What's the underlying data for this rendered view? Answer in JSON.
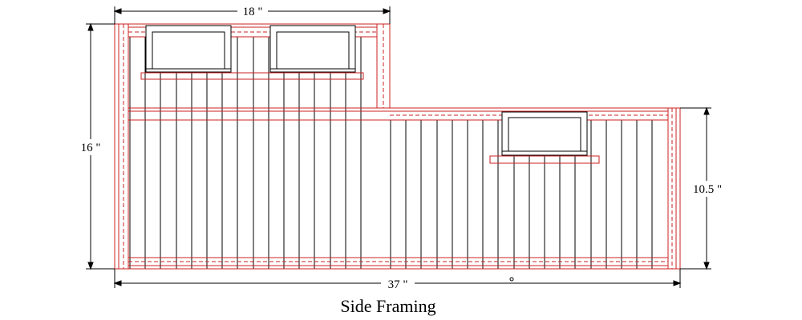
{
  "drawing": {
    "title": "Side Framing",
    "dimensions": {
      "top_width": "18 \"",
      "total_width": "37 \"",
      "total_height": "16 \"",
      "lower_height": "10.5 \""
    },
    "colors": {
      "framing": "#cc2222",
      "studs": "#000000",
      "dimension": "#000000"
    }
  }
}
